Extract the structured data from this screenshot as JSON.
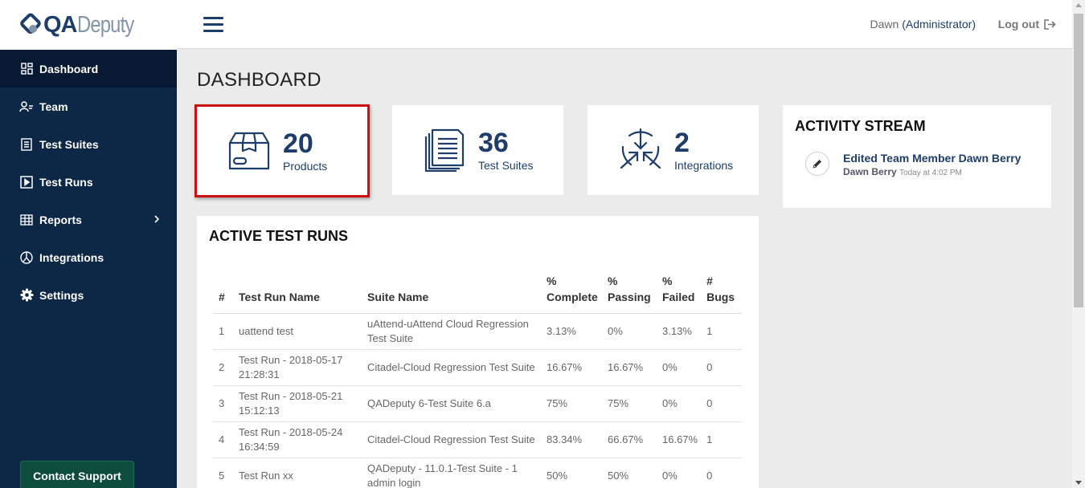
{
  "logo": {
    "qa": "QA",
    "deputy": "Deputy"
  },
  "sidebar": {
    "items": [
      {
        "label": "Dashboard",
        "icon": "dashboard-icon"
      },
      {
        "label": "Team",
        "icon": "team-icon"
      },
      {
        "label": "Test Suites",
        "icon": "test-suites-icon"
      },
      {
        "label": "Test Runs",
        "icon": "test-runs-icon"
      },
      {
        "label": "Reports",
        "icon": "reports-icon"
      },
      {
        "label": "Integrations",
        "icon": "integrations-icon"
      },
      {
        "label": "Settings",
        "icon": "gear-icon"
      }
    ],
    "contact_support": "Contact Support"
  },
  "header": {
    "user_name": "Dawn",
    "user_role": "(Administrator)",
    "logout": "Log out"
  },
  "page": {
    "title": "DASHBOARD"
  },
  "stats": [
    {
      "number": "20",
      "label": "Products",
      "icon": "box-icon"
    },
    {
      "number": "36",
      "label": "Test Suites",
      "icon": "documents-icon"
    },
    {
      "number": "2",
      "label": "Integrations",
      "icon": "integrations-icon"
    }
  ],
  "active_runs": {
    "title": "ACTIVE TEST RUNS",
    "columns": {
      "num": "#",
      "name": "Test Run Name",
      "suite": "Suite Name",
      "complete_1": "%",
      "complete_2": "Complete",
      "passing_1": "%",
      "passing_2": "Passing",
      "failed_1": "%",
      "failed_2": "Failed",
      "bugs_1": "#",
      "bugs_2": "Bugs"
    },
    "rows": [
      {
        "num": "1",
        "name": "uattend test",
        "suite": "uAttend-uAttend Cloud Regression Test Suite",
        "complete": "3.13%",
        "passing": "0%",
        "failed": "3.13%",
        "bugs": "1"
      },
      {
        "num": "2",
        "name": "Test Run - 2018-05-17 21:28:31",
        "suite": "Citadel-Cloud Regression Test Suite",
        "complete": "16.67%",
        "passing": "16.67%",
        "failed": "0%",
        "bugs": "0"
      },
      {
        "num": "3",
        "name": "Test Run - 2018-05-21 15:12:13",
        "suite": "QADeputy 6-Test Suite 6.a",
        "complete": "75%",
        "passing": "75%",
        "failed": "0%",
        "bugs": "0"
      },
      {
        "num": "4",
        "name": "Test Run - 2018-05-24 16:34:59",
        "suite": "Citadel-Cloud Regression Test Suite",
        "complete": "83.34%",
        "passing": "66.67%",
        "failed": "16.67%",
        "bugs": "1"
      },
      {
        "num": "5",
        "name": "Test Run xx",
        "suite": "QADeputy - 11.0.1-Test Suite - 1 admin login",
        "complete": "50%",
        "passing": "50%",
        "failed": "0%",
        "bugs": "0"
      }
    ]
  },
  "activity": {
    "title": "ACTIVITY STREAM",
    "items": [
      {
        "title": "Edited Team Member Dawn Berry",
        "user": "Dawn Berry",
        "time": "Today at 4:02 PM",
        "icon": "pencil-icon"
      }
    ]
  },
  "colors": {
    "sidebar_bg": "#0d2747",
    "brand_navy": "#1e3d6a",
    "highlight_red": "#cc1010",
    "support_green": "#0e4d3d"
  }
}
